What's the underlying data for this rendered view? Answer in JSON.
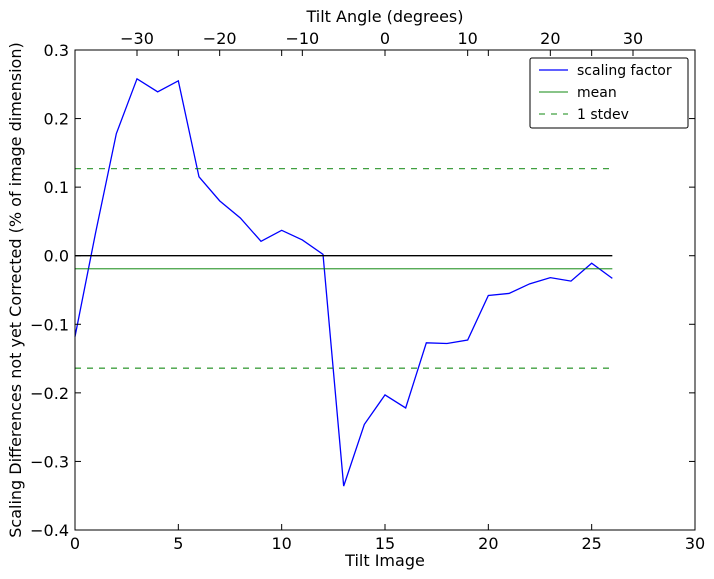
{
  "chart_data": {
    "type": "line",
    "xlabel": "Tilt Image",
    "ylabel": "Scaling Differences not yet Corrected (% of image dimension)",
    "top_xlabel": "Tilt Angle (degrees)",
    "xlim": [
      0,
      30
    ],
    "ylim": [
      -0.4,
      0.3
    ],
    "top_xlim": [
      -37.5,
      37.5
    ],
    "xticks": [
      0,
      5,
      10,
      15,
      20,
      25,
      30
    ],
    "xtick_labels": [
      "0",
      "5",
      "10",
      "15",
      "20",
      "25",
      "30"
    ],
    "yticks": [
      -0.4,
      -0.3,
      -0.2,
      -0.1,
      0.0,
      0.1,
      0.2,
      0.3
    ],
    "ytick_labels": [
      "−0.4",
      "−0.3",
      "−0.2",
      "−0.1",
      "0.0",
      "0.1",
      "0.2",
      "0.3"
    ],
    "top_xticks": [
      -30,
      -20,
      -10,
      0,
      10,
      20,
      30
    ],
    "top_xtick_labels": [
      "−30",
      "−20",
      "−10",
      "0",
      "10",
      "20",
      "30"
    ],
    "grid": false,
    "legend_position": "top-right",
    "series": [
      {
        "name": "scaling factor",
        "color": "#0000ff",
        "style": "solid",
        "x": [
          0,
          1,
          2,
          3,
          4,
          5,
          6,
          7,
          8,
          9,
          10,
          11,
          12,
          13,
          14,
          15,
          16,
          17,
          18,
          19,
          20,
          21,
          22,
          23,
          24,
          25,
          26
        ],
        "y": [
          -0.118,
          0.034,
          0.178,
          0.258,
          0.239,
          0.255,
          0.115,
          0.08,
          0.055,
          0.021,
          0.037,
          0.023,
          0.002,
          -0.336,
          -0.246,
          -0.203,
          -0.222,
          -0.127,
          -0.128,
          -0.123,
          -0.058,
          -0.055,
          -0.041,
          -0.032,
          -0.037,
          -0.011,
          -0.033
        ]
      },
      {
        "name": "mean",
        "color": "#008000",
        "style": "solid",
        "x": [
          0,
          26
        ],
        "y": [
          -0.019,
          -0.019
        ]
      },
      {
        "name": "1 stdev",
        "color": "#008000",
        "style": "dashed",
        "x": [
          0,
          26
        ],
        "y": [
          0.127,
          0.127
        ]
      },
      {
        "name": "",
        "color": "#008000",
        "style": "dashed",
        "x": [
          0,
          26
        ],
        "y": [
          -0.164,
          -0.164
        ]
      },
      {
        "name": "",
        "color": "#000000",
        "style": "solid",
        "x": [
          0,
          26
        ],
        "y": [
          0.0,
          0.0
        ]
      }
    ],
    "legend": [
      {
        "label": "scaling factor",
        "color": "#0000ff",
        "style": "solid"
      },
      {
        "label": "mean",
        "color": "#008000",
        "style": "solid"
      },
      {
        "label": "1 stdev",
        "color": "#008000",
        "style": "dashed"
      }
    ]
  }
}
